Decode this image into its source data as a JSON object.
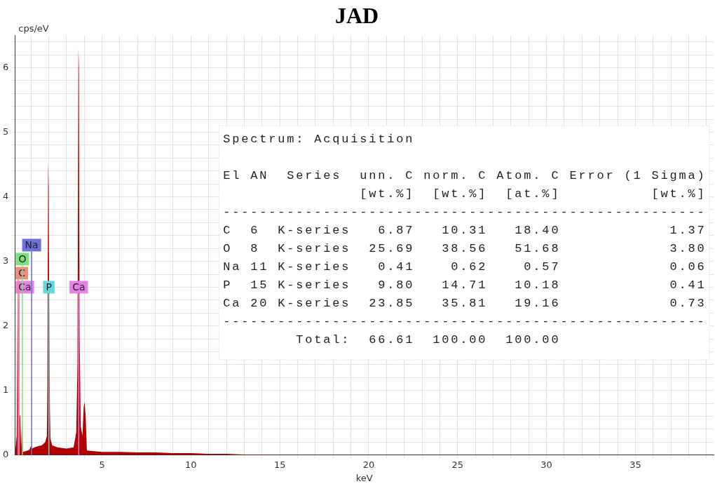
{
  "chart_data": {
    "type": "area",
    "title": "JAD",
    "xlabel": "keV",
    "ylabel": "cps/eV",
    "x": [
      0.1,
      0.2,
      0.25,
      0.3,
      0.33,
      0.4,
      0.45,
      0.5,
      0.55,
      0.7,
      0.9,
      1.0,
      1.05,
      1.2,
      1.4,
      1.6,
      1.8,
      1.9,
      1.93,
      1.97,
      2.0,
      2.03,
      2.07,
      2.1,
      2.2,
      2.5,
      3.0,
      3.4,
      3.55,
      3.62,
      3.67,
      3.7,
      3.74,
      3.8,
      3.9,
      3.97,
      4.02,
      4.08,
      4.15,
      5,
      6,
      7,
      8,
      9,
      10,
      11,
      12,
      13,
      14,
      15,
      16,
      18,
      20,
      39.4
    ],
    "series": [
      {
        "color": "#b00000",
        "values": [
          0,
          0.3,
          2.45,
          2.4,
          0.65,
          0.6,
          0.1,
          0.55,
          0.05,
          0.06,
          0.08,
          0.14,
          0.1,
          0.12,
          0.14,
          0.15,
          0.2,
          0.3,
          1.08,
          4.55,
          4.15,
          2.35,
          0.7,
          0.25,
          0.15,
          0.12,
          0.1,
          0.12,
          0.35,
          1.4,
          6.3,
          6.0,
          1.9,
          0.45,
          0.3,
          0.75,
          0.82,
          0.6,
          0.07,
          0.05,
          0.05,
          0.04,
          0.04,
          0.03,
          0.03,
          0.02,
          0.02,
          0.01,
          0.01,
          0,
          0,
          0,
          0,
          0
        ]
      }
    ],
    "xlim": [
      0.1,
      39.4
    ],
    "xticks": [
      {
        "value": 1,
        "label": null
      },
      {
        "value": 2,
        "label": null
      },
      {
        "value": 3,
        "label": null
      },
      {
        "value": 4,
        "label": null
      },
      5,
      {
        "value": 6,
        "label": null
      },
      {
        "value": 7,
        "label": null
      },
      {
        "value": 8,
        "label": null
      },
      {
        "value": 9,
        "label": null
      },
      10,
      {
        "value": 11,
        "label": null
      },
      {
        "value": 12,
        "label": null
      },
      {
        "value": 13,
        "label": null
      },
      {
        "value": 14,
        "label": null
      },
      15,
      {
        "value": 16,
        "label": null
      },
      {
        "value": 17,
        "label": null
      },
      {
        "value": 18,
        "label": null
      },
      {
        "value": 19,
        "label": null
      },
      20,
      {
        "value": 21,
        "label": null
      },
      {
        "value": 22,
        "label": null
      },
      {
        "value": 23,
        "label": null
      },
      {
        "value": 24,
        "label": null
      },
      25,
      {
        "value": 26,
        "label": null
      },
      {
        "value": 27,
        "label": null
      },
      {
        "value": 28,
        "label": null
      },
      {
        "value": 29,
        "label": null
      },
      30,
      {
        "value": 31,
        "label": null
      },
      {
        "value": 32,
        "label": null
      },
      {
        "value": 33,
        "label": null
      },
      {
        "value": 34,
        "label": null
      },
      35,
      {
        "value": 36,
        "label": null
      },
      {
        "value": 37,
        "label": null
      },
      {
        "value": 38,
        "label": null
      },
      {
        "value": 39,
        "label": null
      }
    ],
    "ylim": [
      0,
      6.5
    ],
    "yticks": [
      0,
      {
        "value": 0.2,
        "label": null
      },
      {
        "value": 0.4,
        "label": null
      },
      {
        "value": 0.6,
        "label": null
      },
      {
        "value": 0.8,
        "label": null
      },
      1,
      {
        "value": 1.2,
        "label": null
      },
      {
        "value": 1.4,
        "label": null
      },
      {
        "value": 1.6,
        "label": null
      },
      {
        "value": 1.8,
        "label": null
      },
      2,
      {
        "value": 2.2,
        "label": null
      },
      {
        "value": 2.4,
        "label": null
      },
      {
        "value": 2.6,
        "label": null
      },
      {
        "value": 2.8,
        "label": null
      },
      3,
      {
        "value": 3.2,
        "label": null
      },
      {
        "value": 3.4,
        "label": null
      },
      {
        "value": 3.6,
        "label": null
      },
      {
        "value": 3.8,
        "label": null
      },
      4,
      {
        "value": 4.2,
        "label": null
      },
      {
        "value": 4.4,
        "label": null
      },
      {
        "value": 4.6,
        "label": null
      },
      {
        "value": 4.8,
        "label": null
      },
      5,
      {
        "value": 5.2,
        "label": null
      },
      {
        "value": 5.4,
        "label": null
      },
      {
        "value": 5.6,
        "label": null
      },
      {
        "value": 5.8,
        "label": null
      },
      6,
      {
        "value": 6.2,
        "label": null
      },
      {
        "value": 6.4,
        "label": null
      }
    ],
    "grid": true,
    "legend": false,
    "marker": "none",
    "ref_lines": [
      {
        "axis": "x",
        "value": 0.34,
        "label": "Ca",
        "color": "#e680e6"
      },
      {
        "axis": "x",
        "value": 0.28,
        "label": "C",
        "color": "#f08a80"
      },
      {
        "axis": "x",
        "value": 0.52,
        "label": "O",
        "color": "#7ee07e"
      },
      {
        "axis": "x",
        "value": 1.04,
        "label": "Na",
        "color": "#7070dd"
      },
      {
        "axis": "x",
        "value": 2.01,
        "label": "P",
        "color": "#66d8d8"
      },
      {
        "axis": "x",
        "value": 3.69,
        "label": "Ca",
        "color": "#e680e6"
      }
    ],
    "annotations": [
      "Spectrum: Acquisition",
      "El AN  Series  unn. C norm. C Atom. C Error (1 Sigma)",
      "               [wt.%]  [wt.%]  [at.%]          [wt.%]",
      "-----------------------------------------------------",
      "C  6  K-series   6.87   10.31   18.40            1.37",
      "O  8  K-series  25.69   38.56   51.68            3.80",
      "Na 11 K-series   0.41    0.62    0.57            0.06",
      "P  15 K-series   9.80   14.71   10.18            0.41",
      "Ca 20 K-series  23.85   35.81   19.16            0.73",
      "-----------------------------------------------------",
      "        Total:  66.61  100.00  100.00"
    ]
  }
}
